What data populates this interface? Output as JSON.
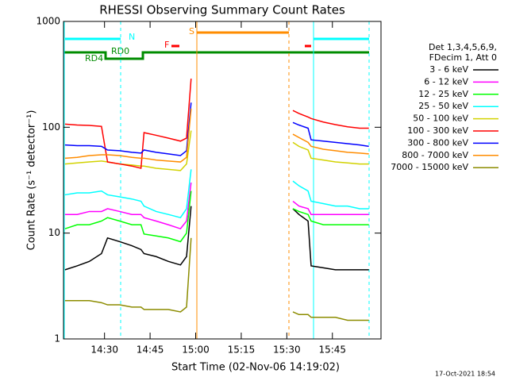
{
  "chart_data": {
    "type": "line",
    "title": "RHESSI Observing Summary Count Rates",
    "xlabel": "Start Time (02-Nov-06 14:19:02)",
    "ylabel": "Count Rate (s⁻¹ detector⁻¹)",
    "legend_header": [
      "Det 1,3,4,5,6,9,",
      "FDecim 1, Att 0"
    ],
    "annotations": [
      "N",
      "S",
      "F",
      "RD0",
      "RD4"
    ],
    "footer": "17-Oct-2021 18:54",
    "log_y": true,
    "legend": "right",
    "xlim": [
      856.5,
      961
    ],
    "ylim": [
      1,
      1000
    ],
    "xticks": [
      {
        "value": 870,
        "label": "14:30"
      },
      {
        "value": 885,
        "label": "14:45"
      },
      {
        "value": 900,
        "label": "15:00"
      },
      {
        "value": 915,
        "label": "15:15"
      },
      {
        "value": 930,
        "label": "15:30"
      },
      {
        "value": 945,
        "label": "15:45"
      }
    ],
    "yticks": [
      1,
      10,
      100,
      1000
    ],
    "x": [
      857,
      861,
      865,
      869,
      871,
      875,
      879,
      882,
      883,
      887,
      891,
      895,
      897,
      898.5,
      915,
      932,
      934,
      937,
      938,
      942,
      946,
      950,
      954,
      957
    ],
    "series": [
      {
        "name": "3 - 6 keV",
        "color": "#000000",
        "values": [
          4.5,
          4.9,
          5.4,
          6.4,
          9.0,
          8.3,
          7.6,
          7.0,
          6.4,
          6.0,
          5.4,
          5.0,
          6,
          18,
          null,
          17,
          15,
          13,
          4.9,
          4.7,
          4.5,
          4.5,
          4.5,
          4.5
        ]
      },
      {
        "name": "6 - 12 keV",
        "color": "#ff00ff",
        "values": [
          15,
          15,
          16,
          16,
          17,
          16,
          15,
          15,
          14,
          13,
          12,
          11,
          13,
          30,
          null,
          20,
          18,
          17,
          15,
          15,
          15,
          15,
          15,
          15
        ]
      },
      {
        "name": "12 - 25 keV",
        "color": "#00ff00",
        "values": [
          11,
          12,
          12,
          13,
          14,
          13,
          12,
          12,
          9.8,
          9.4,
          9.0,
          8.3,
          10,
          25,
          null,
          17,
          16,
          15,
          13,
          12,
          12,
          12,
          12,
          12
        ]
      },
      {
        "name": "25 - 50 keV",
        "color": "#00ffff",
        "values": [
          23,
          24,
          24,
          25,
          23,
          22,
          21,
          20,
          18,
          16,
          15,
          14,
          17,
          40,
          null,
          31,
          28,
          25,
          20,
          19,
          18,
          18,
          17,
          17
        ]
      },
      {
        "name": "50 - 100 keV",
        "color": "#d2d200",
        "values": [
          45,
          46,
          47,
          48,
          47,
          45,
          44,
          43,
          43,
          41,
          40,
          39,
          45,
          93,
          null,
          72,
          66,
          61,
          51,
          49,
          47,
          46,
          45,
          45
        ]
      },
      {
        "name": "100 - 300 keV",
        "color": "#ff0000",
        "values": [
          107,
          105,
          104,
          102,
          47,
          45,
          43,
          41,
          89,
          84,
          79,
          74,
          79,
          288,
          null,
          144,
          135,
          125,
          121,
          112,
          106,
          101,
          98,
          98
        ]
      },
      {
        "name": "300 - 800 keV",
        "color": "#0000ff",
        "values": [
          68,
          67,
          67,
          66,
          61,
          60,
          58,
          57,
          61,
          58,
          56,
          54,
          60,
          171,
          null,
          111,
          105,
          98,
          76,
          74,
          72,
          70,
          68,
          66
        ]
      },
      {
        "name": "800 - 7000 keV",
        "color": "#ff8c00",
        "values": [
          51,
          52,
          54,
          55,
          55,
          54,
          52,
          51,
          51,
          49,
          48,
          47,
          52,
          150,
          null,
          86,
          80,
          72,
          66,
          62,
          60,
          58,
          57,
          56
        ]
      },
      {
        "name": "7000 - 15000 keV",
        "color": "#8c8c00",
        "values": [
          2.3,
          2.3,
          2.3,
          2.2,
          2.1,
          2.1,
          2.0,
          2.0,
          1.9,
          1.9,
          1.9,
          1.8,
          2.0,
          9.0,
          null,
          1.8,
          1.7,
          1.7,
          1.6,
          1.6,
          1.6,
          1.5,
          1.5,
          1.5
        ]
      }
    ]
  }
}
